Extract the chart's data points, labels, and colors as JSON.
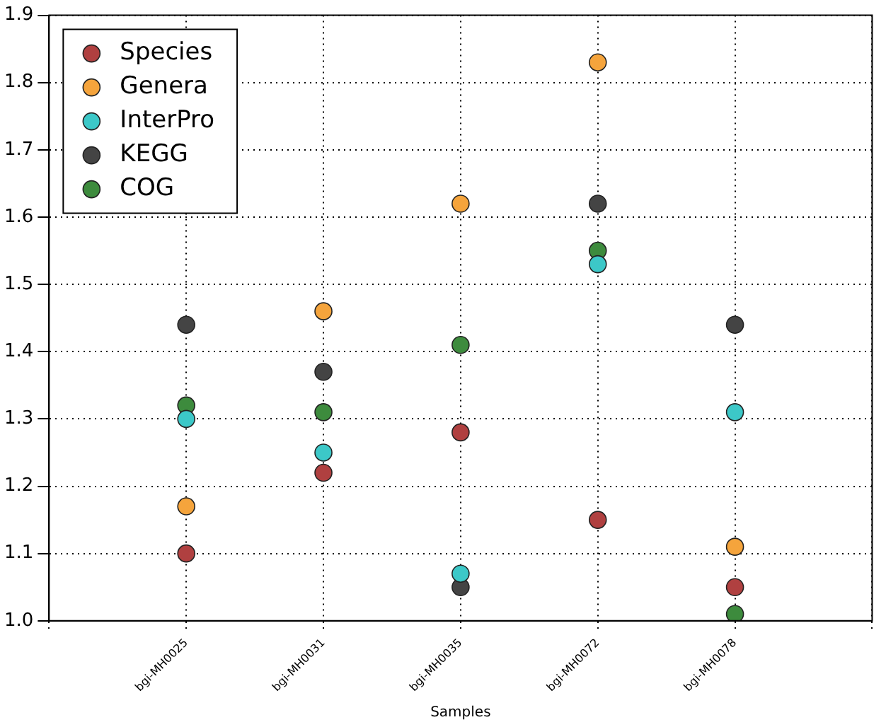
{
  "chart_data": {
    "type": "scatter",
    "xlabel": "Samples",
    "categories": [
      "bgi-MH0025",
      "bgi-MH0031",
      "bgi-MH0035",
      "bgi-MH0072",
      "bgi-MH0078"
    ],
    "series": [
      {
        "name": "Species",
        "color": "#b04040",
        "values": [
          1.1,
          1.22,
          1.28,
          1.15,
          1.05
        ]
      },
      {
        "name": "Genera",
        "color": "#f5a43c",
        "values": [
          1.17,
          1.46,
          1.62,
          1.83,
          1.11
        ]
      },
      {
        "name": "InterPro",
        "color": "#3cc8c8",
        "values": [
          1.3,
          1.25,
          1.07,
          1.53,
          1.31
        ]
      },
      {
        "name": "KEGG",
        "color": "#444444",
        "values": [
          1.44,
          1.37,
          1.05,
          1.62,
          1.44
        ]
      },
      {
        "name": "COG",
        "color": "#3d8b3d",
        "values": [
          1.32,
          1.31,
          1.41,
          1.55,
          1.01
        ]
      }
    ],
    "ylim": [
      1.0,
      1.9
    ],
    "yticks": [
      {
        "value": 1.0,
        "label": "1.0"
      },
      {
        "value": 1.1,
        "label": "1.1"
      },
      {
        "value": 1.2,
        "label": "1.2"
      },
      {
        "value": 1.3,
        "label": "1.3"
      },
      {
        "value": 1.4,
        "label": "1.4"
      },
      {
        "value": 1.5,
        "label": "1.5"
      },
      {
        "value": 1.6,
        "label": "1.6"
      },
      {
        "value": 1.7,
        "label": "1.7"
      },
      {
        "value": 1.8,
        "label": "1.8"
      },
      {
        "value": 1.9,
        "label": "1.9"
      }
    ],
    "grid": true,
    "legend": "top left",
    "marker": "circle"
  }
}
